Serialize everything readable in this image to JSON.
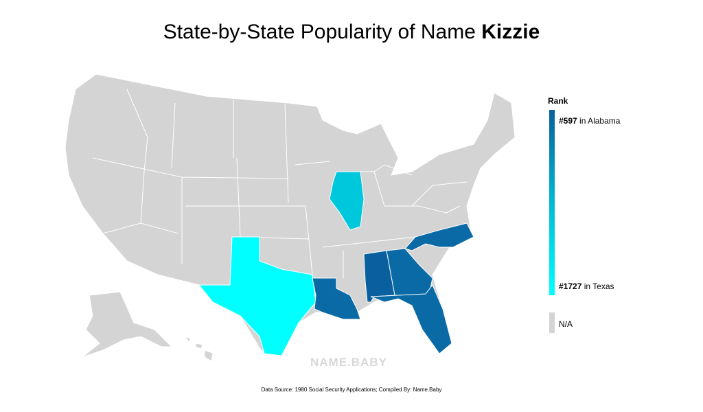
{
  "title": {
    "text": "State-by-State Popularity of Name ",
    "name": "Kizzie"
  },
  "legend": {
    "title": "Rank",
    "top": {
      "rank": "#597",
      "label": "in Alabama"
    },
    "bottom": {
      "rank": "#1727",
      "label": "in Texas"
    },
    "na": "N/A"
  },
  "watermark": "NAME.BABY",
  "source": "Data Source: 1980 Social Security Applications; Compiled By: Name.Baby"
}
